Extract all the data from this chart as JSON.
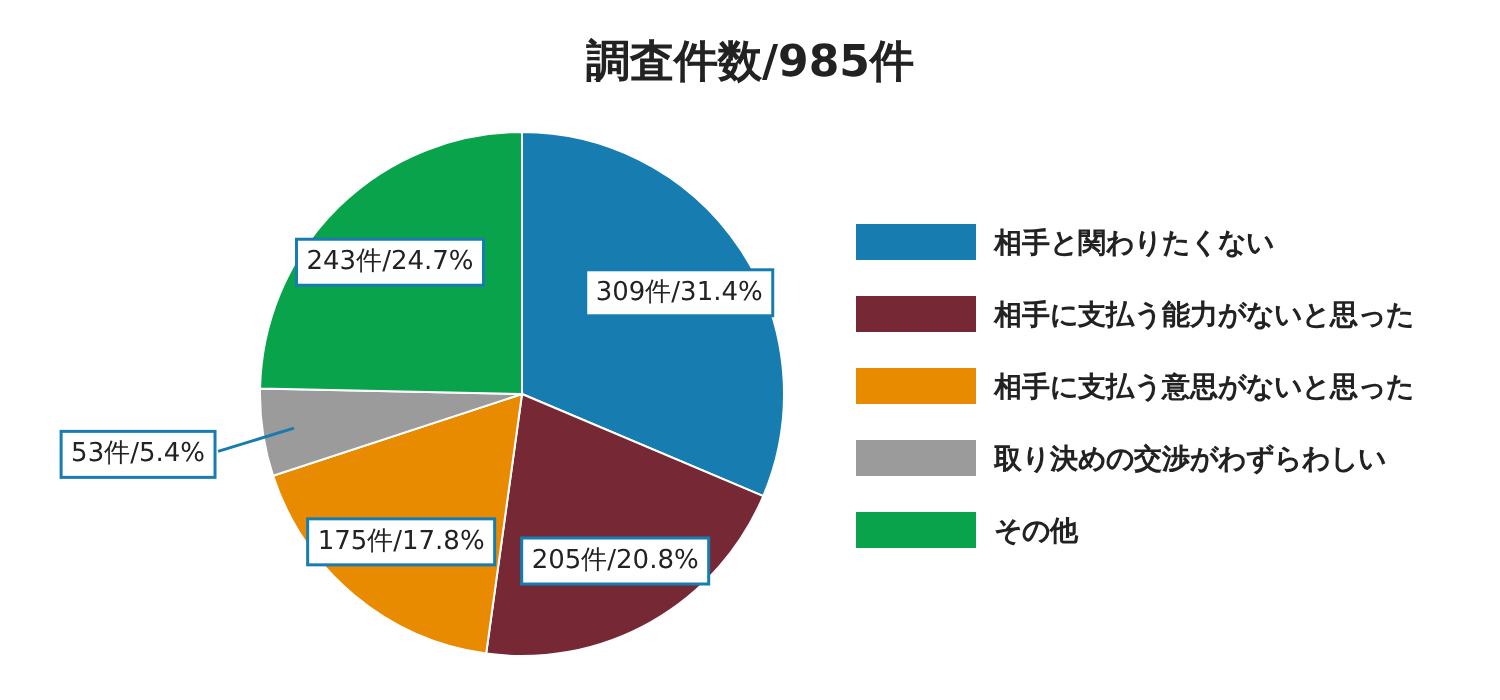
{
  "chart_data": {
    "type": "pie",
    "title": "調査件数/985件",
    "categories": [
      "相手と関わりたくない",
      "相手に支払う能力がないと思った",
      "相手に支払う意思がないと思った",
      "取り決めの交渉がわずらわしい",
      "その他"
    ],
    "values": [
      309,
      205,
      175,
      53,
      243
    ],
    "colors": [
      "#177cb0",
      "#772835",
      "#e98b00",
      "#9b9b9b",
      "#08a34a"
    ],
    "value_labels": [
      "309件/31.4%",
      "205件/20.8%",
      "175件/17.8%",
      "53件/5.4%",
      "243件/24.7%"
    ],
    "legend": "right"
  }
}
